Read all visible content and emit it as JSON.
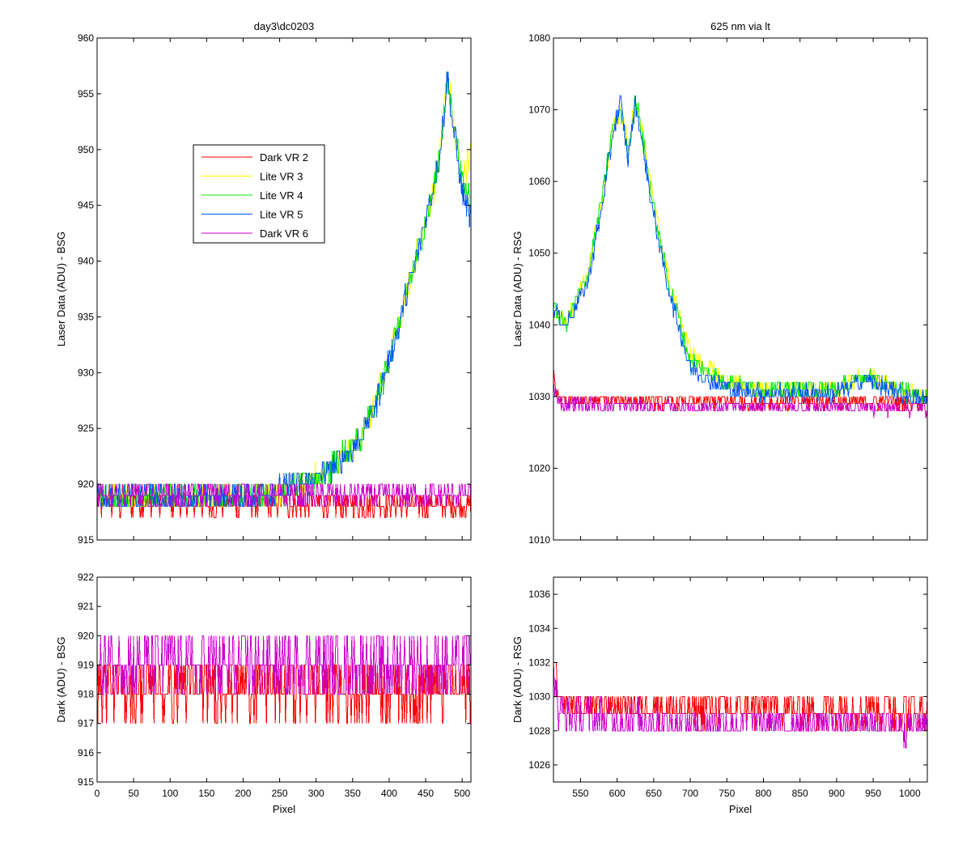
{
  "figure": {
    "title_left": "day3\\dc0203",
    "title_right": "625 nm via lt"
  },
  "chart_data": [
    {
      "id": "p1",
      "type": "line",
      "title": "day3\\dc0203",
      "xlabel": "",
      "ylabel": "Laser Data (ADU) - BSG",
      "xlim": [
        0,
        512
      ],
      "ylim": [
        915,
        960
      ],
      "xticks": [],
      "yticks": [
        915,
        920,
        925,
        930,
        935,
        940,
        945,
        950,
        955,
        960
      ],
      "legend": "upper-left",
      "series": [
        {
          "name": "Dark VR 2",
          "color": "#ff0000",
          "noise": 1.1,
          "x": [
            0,
            100,
            200,
            300,
            400,
            512
          ],
          "y": [
            918.2,
            918.2,
            918.2,
            918.2,
            918.2,
            918.2
          ]
        },
        {
          "name": "Lite VR 3",
          "color": "#ffff00",
          "noise": 1.2,
          "x": [
            0,
            100,
            200,
            260,
            300,
            330,
            360,
            380,
            400,
            420,
            440,
            460,
            470,
            480,
            490,
            500,
            512
          ],
          "y": [
            918.8,
            918.8,
            918.8,
            919.6,
            920.5,
            922.0,
            924.0,
            927.0,
            931.0,
            936.0,
            941.0,
            946.0,
            950.0,
            957.0,
            951.0,
            947.0,
            950.0
          ]
        },
        {
          "name": "Lite VR 4",
          "color": "#00ee00",
          "noise": 1.2,
          "x": [
            0,
            100,
            200,
            260,
            300,
            330,
            360,
            380,
            400,
            420,
            440,
            460,
            470,
            480,
            490,
            500,
            512
          ],
          "y": [
            918.8,
            918.8,
            918.8,
            919.6,
            920.5,
            922.0,
            924.0,
            927.0,
            931.0,
            936.0,
            941.0,
            946.0,
            950.0,
            956.0,
            952.0,
            947.0,
            946.0
          ]
        },
        {
          "name": "Lite VR 5",
          "color": "#0055ff",
          "noise": 1.2,
          "x": [
            0,
            100,
            200,
            260,
            300,
            330,
            360,
            380,
            400,
            420,
            440,
            460,
            470,
            480,
            490,
            500,
            512
          ],
          "y": [
            918.8,
            918.8,
            918.8,
            919.6,
            920.5,
            922.0,
            924.0,
            927.0,
            931.0,
            936.0,
            941.0,
            946.5,
            950.0,
            956.5,
            951.0,
            946.0,
            944.0
          ]
        },
        {
          "name": "Dark VR 6",
          "color": "#cc00cc",
          "noise": 1.0,
          "x": [
            0,
            100,
            200,
            300,
            400,
            512
          ],
          "y": [
            919.0,
            919.0,
            919.0,
            919.0,
            919.0,
            919.0
          ]
        }
      ]
    },
    {
      "id": "p2",
      "type": "line",
      "title": "625 nm via lt",
      "xlabel": "",
      "ylabel": "Laser Data (ADU) - RSG",
      "xlim": [
        513,
        1024
      ],
      "ylim": [
        1010,
        1080
      ],
      "xticks": [],
      "yticks": [
        1010,
        1020,
        1030,
        1040,
        1050,
        1060,
        1070,
        1080
      ],
      "series": [
        {
          "name": "Dark VR 2",
          "color": "#ff0000",
          "noise": 1.0,
          "x": [
            513,
            520,
            600,
            700,
            800,
            900,
            1024
          ],
          "y": [
            1033,
            1029.5,
            1029.5,
            1029.3,
            1029.3,
            1029.3,
            1029.3
          ]
        },
        {
          "name": "Lite VR 3",
          "color": "#ffff00",
          "noise": 1.2,
          "x": [
            513,
            530,
            560,
            580,
            595,
            605,
            615,
            625,
            635,
            650,
            670,
            700,
            750,
            800,
            900,
            940,
            980,
            1024
          ],
          "y": [
            1042,
            1040,
            1047,
            1058,
            1068,
            1070,
            1065,
            1071,
            1067,
            1057,
            1047,
            1036,
            1032,
            1031,
            1031,
            1033,
            1031,
            1030
          ]
        },
        {
          "name": "Lite VR 4",
          "color": "#00ee00",
          "noise": 1.2,
          "x": [
            513,
            530,
            560,
            580,
            595,
            605,
            615,
            625,
            635,
            650,
            670,
            700,
            750,
            800,
            900,
            940,
            980,
            1024
          ],
          "y": [
            1042,
            1040,
            1047,
            1058,
            1068,
            1070,
            1064,
            1072,
            1066,
            1056,
            1046,
            1035,
            1032,
            1031,
            1031,
            1033,
            1031,
            1030
          ]
        },
        {
          "name": "Lite VR 5",
          "color": "#0055ff",
          "noise": 1.2,
          "x": [
            513,
            530,
            560,
            580,
            595,
            605,
            615,
            625,
            635,
            650,
            670,
            700,
            750,
            800,
            900,
            940,
            980,
            1024
          ],
          "y": [
            1042,
            1040,
            1046,
            1057,
            1067,
            1071,
            1063,
            1071,
            1065,
            1055,
            1045,
            1034,
            1031,
            1030.5,
            1030.5,
            1032.5,
            1030.5,
            1029.5
          ]
        },
        {
          "name": "Dark VR 6",
          "color": "#cc00cc",
          "noise": 1.0,
          "x": [
            513,
            520,
            600,
            700,
            800,
            900,
            1024
          ],
          "y": [
            1032,
            1029,
            1028.7,
            1028.5,
            1028.5,
            1028.5,
            1028.4
          ]
        }
      ]
    },
    {
      "id": "p3",
      "type": "line",
      "title": "",
      "xlabel": "Pixel",
      "ylabel": "Dark (ADU) - BSG",
      "xlim": [
        0,
        512
      ],
      "ylim": [
        915,
        922
      ],
      "xticks": [
        0,
        50,
        100,
        150,
        200,
        250,
        300,
        350,
        400,
        450,
        500
      ],
      "yticks": [
        915,
        916,
        917,
        918,
        919,
        920,
        921,
        922
      ],
      "series": [
        {
          "name": "Dark VR 2",
          "color": "#ff0000",
          "noise": 1.0,
          "x": [
            0,
            100,
            200,
            300,
            400,
            512
          ],
          "y": [
            918.2,
            918.2,
            918.2,
            918.2,
            918.2,
            918.2
          ]
        },
        {
          "name": "Dark VR 6",
          "color": "#cc00cc",
          "noise": 1.0,
          "x": [
            0,
            100,
            200,
            300,
            400,
            512
          ],
          "y": [
            919.0,
            919.0,
            919.0,
            919.0,
            919.0,
            919.0
          ]
        }
      ]
    },
    {
      "id": "p4",
      "type": "line",
      "title": "",
      "xlabel": "Pixel",
      "ylabel": "Dark (ADU) - RSG",
      "xlim": [
        513,
        1024
      ],
      "ylim": [
        1025,
        1037
      ],
      "xticks": [
        550,
        600,
        650,
        700,
        750,
        800,
        850,
        900,
        950,
        1000
      ],
      "yticks": [
        1026,
        1028,
        1030,
        1032,
        1034,
        1036
      ],
      "series": [
        {
          "name": "Dark VR 2",
          "color": "#ff0000",
          "noise": 1.0,
          "x": [
            513,
            520,
            600,
            700,
            800,
            900,
            1024
          ],
          "y": [
            1033,
            1029.5,
            1029.5,
            1029.3,
            1029.3,
            1029.3,
            1029.3
          ]
        },
        {
          "name": "Dark VR 6",
          "color": "#cc00cc",
          "noise": 1.0,
          "x": [
            513,
            520,
            600,
            700,
            800,
            900,
            1024
          ],
          "y": [
            1032,
            1029,
            1028.7,
            1028.5,
            1028.5,
            1028.5,
            1028.4
          ]
        }
      ]
    }
  ]
}
